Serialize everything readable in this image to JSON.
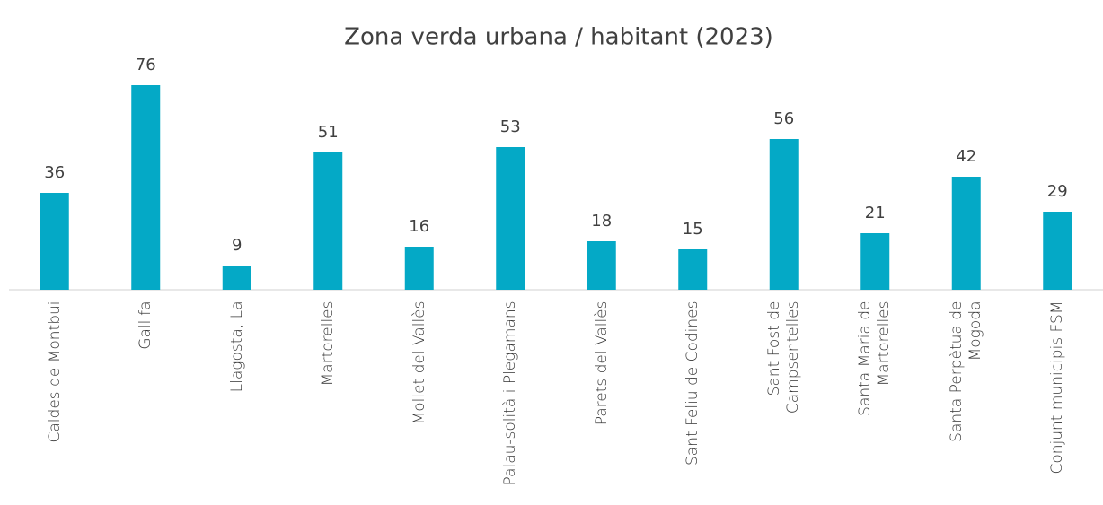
{
  "chart_data": {
    "type": "bar",
    "title": "Zona verda urbana / habitant (2023)",
    "categories": [
      "Caldes de Montbui",
      "Gallifa",
      "Llagosta, La",
      "Martorelles",
      "Mollet del Vallès",
      "Palau-solità i Plegamans",
      "Parets del Vallès",
      "Sant Feliu de Codines",
      "Sant Fost de Campsentelles",
      "Santa Maria de Martorelles",
      "Santa Perpètua de Mogoda",
      "Conjunt municipis FSM"
    ],
    "values": [
      36,
      76,
      9,
      51,
      16,
      53,
      18,
      15,
      56,
      21,
      42,
      29
    ],
    "color": "#04a9c6"
  }
}
